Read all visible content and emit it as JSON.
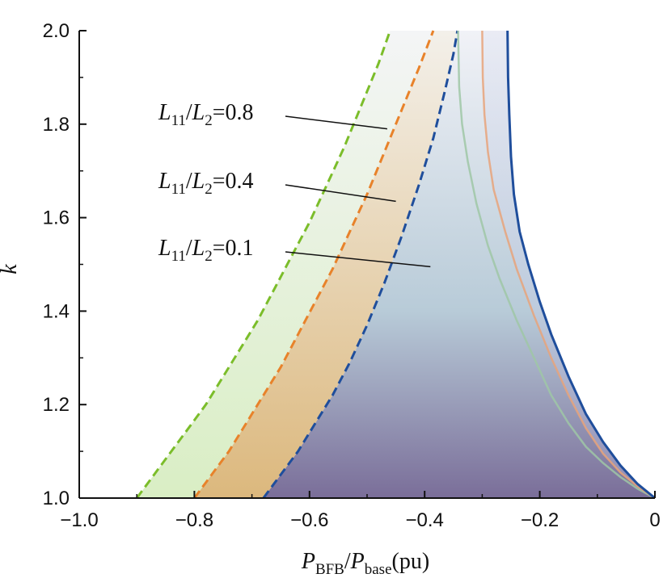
{
  "chart_data": {
    "type": "area",
    "title": "",
    "xlabel": {
      "main1": "P",
      "sub1": "BFB",
      "slash": "/",
      "main2": "P",
      "sub2": "base",
      "unit": "(pu)"
    },
    "ylabel": "k",
    "xlim": [
      -1.0,
      0
    ],
    "ylim": [
      1.0,
      2.0
    ],
    "x_ticks": [
      -1.0,
      -0.8,
      -0.6,
      -0.4,
      -0.2,
      0
    ],
    "x_tick_labels": [
      "−1.0",
      "−0.8",
      "−0.6",
      "−0.4",
      "−0.2",
      "0"
    ],
    "y_ticks": [
      1.0,
      1.2,
      1.4,
      1.6,
      1.8,
      2.0
    ],
    "y_tick_labels": [
      "1.0",
      "1.2",
      "1.4",
      "1.6",
      "1.8",
      "2.0"
    ],
    "annotations": [
      {
        "num": "L",
        "num_sub": "11",
        "den": "L",
        "den_sub": "2",
        "value": "=0.8",
        "arrow_to": {
          "x": -0.465,
          "k": 1.79
        }
      },
      {
        "num": "L",
        "num_sub": "11",
        "den": "L",
        "den_sub": "2",
        "value": "=0.4",
        "arrow_to": {
          "x": -0.45,
          "k": 1.635
        }
      },
      {
        "num": "L",
        "num_sub": "11",
        "den": "L",
        "den_sub": "2",
        "value": "=0.1",
        "arrow_to": {
          "x": -0.39,
          "k": 1.495
        }
      }
    ],
    "series": [
      {
        "name": "L11/L2=0.8 left boundary",
        "style": "dashed",
        "color": "#7bbd2a",
        "points": [
          [
            -0.9,
            1.0
          ],
          [
            -0.87,
            1.05
          ],
          [
            -0.84,
            1.1
          ],
          [
            -0.81,
            1.15
          ],
          [
            -0.78,
            1.2
          ],
          [
            -0.75,
            1.26
          ],
          [
            -0.72,
            1.32
          ],
          [
            -0.69,
            1.38
          ],
          [
            -0.66,
            1.45
          ],
          [
            -0.63,
            1.52
          ],
          [
            -0.6,
            1.59
          ],
          [
            -0.57,
            1.67
          ],
          [
            -0.54,
            1.75
          ],
          [
            -0.51,
            1.84
          ],
          [
            -0.48,
            1.93
          ],
          [
            -0.46,
            2.0
          ]
        ]
      },
      {
        "name": "L11/L2=0.4 left boundary",
        "style": "dashed",
        "color": "#e8822a",
        "points": [
          [
            -0.8,
            1.0
          ],
          [
            -0.77,
            1.05
          ],
          [
            -0.74,
            1.1
          ],
          [
            -0.71,
            1.16
          ],
          [
            -0.68,
            1.22
          ],
          [
            -0.65,
            1.28
          ],
          [
            -0.62,
            1.35
          ],
          [
            -0.59,
            1.42
          ],
          [
            -0.56,
            1.49
          ],
          [
            -0.53,
            1.57
          ],
          [
            -0.5,
            1.65
          ],
          [
            -0.47,
            1.74
          ],
          [
            -0.44,
            1.83
          ],
          [
            -0.41,
            1.92
          ],
          [
            -0.385,
            2.0
          ]
        ]
      },
      {
        "name": "L11/L2=0.1 left boundary",
        "style": "dashed",
        "color": "#1f4e9c",
        "points": [
          [
            -0.68,
            1.0
          ],
          [
            -0.65,
            1.05
          ],
          [
            -0.62,
            1.1
          ],
          [
            -0.59,
            1.16
          ],
          [
            -0.56,
            1.22
          ],
          [
            -0.53,
            1.29
          ],
          [
            -0.5,
            1.37
          ],
          [
            -0.47,
            1.46
          ],
          [
            -0.44,
            1.56
          ],
          [
            -0.41,
            1.67
          ],
          [
            -0.385,
            1.77
          ],
          [
            -0.365,
            1.87
          ],
          [
            -0.35,
            1.95
          ],
          [
            -0.343,
            2.0
          ]
        ]
      },
      {
        "name": "L11/L2=0.8 right boundary",
        "style": "solid",
        "color": "#9fc7a6",
        "points": [
          [
            0,
            1.0
          ],
          [
            -0.03,
            1.02
          ],
          [
            -0.06,
            1.045
          ],
          [
            -0.09,
            1.075
          ],
          [
            -0.12,
            1.11
          ],
          [
            -0.15,
            1.16
          ],
          [
            -0.18,
            1.22
          ],
          [
            -0.21,
            1.3
          ],
          [
            -0.24,
            1.38
          ],
          [
            -0.27,
            1.47
          ],
          [
            -0.29,
            1.54
          ],
          [
            -0.31,
            1.63
          ],
          [
            -0.325,
            1.72
          ],
          [
            -0.335,
            1.8
          ],
          [
            -0.34,
            1.88
          ],
          [
            -0.342,
            2.0
          ]
        ]
      },
      {
        "name": "L11/L2=0.4 right boundary",
        "style": "solid",
        "color": "#e7a37a",
        "points": [
          [
            0,
            1.0
          ],
          [
            -0.03,
            1.025
          ],
          [
            -0.06,
            1.055
          ],
          [
            -0.09,
            1.095
          ],
          [
            -0.12,
            1.15
          ],
          [
            -0.15,
            1.22
          ],
          [
            -0.18,
            1.3
          ],
          [
            -0.21,
            1.39
          ],
          [
            -0.24,
            1.49
          ],
          [
            -0.26,
            1.57
          ],
          [
            -0.28,
            1.66
          ],
          [
            -0.29,
            1.74
          ],
          [
            -0.296,
            1.82
          ],
          [
            -0.299,
            1.9
          ],
          [
            -0.3,
            2.0
          ]
        ]
      },
      {
        "name": "L11/L2=0.1 right boundary",
        "style": "solid",
        "color": "#1f4e9c",
        "points": [
          [
            0,
            1.0
          ],
          [
            -0.03,
            1.03
          ],
          [
            -0.06,
            1.07
          ],
          [
            -0.09,
            1.12
          ],
          [
            -0.12,
            1.18
          ],
          [
            -0.15,
            1.26
          ],
          [
            -0.18,
            1.35
          ],
          [
            -0.2,
            1.42
          ],
          [
            -0.22,
            1.5
          ],
          [
            -0.235,
            1.57
          ],
          [
            -0.245,
            1.65
          ],
          [
            -0.25,
            1.73
          ],
          [
            -0.253,
            1.82
          ],
          [
            -0.255,
            1.9
          ],
          [
            -0.256,
            2.0
          ]
        ]
      }
    ],
    "fill": {
      "top_color": "#f1f2f7",
      "mid_color": "#b8cbd8",
      "bottom_color": "#7a6e99"
    }
  }
}
